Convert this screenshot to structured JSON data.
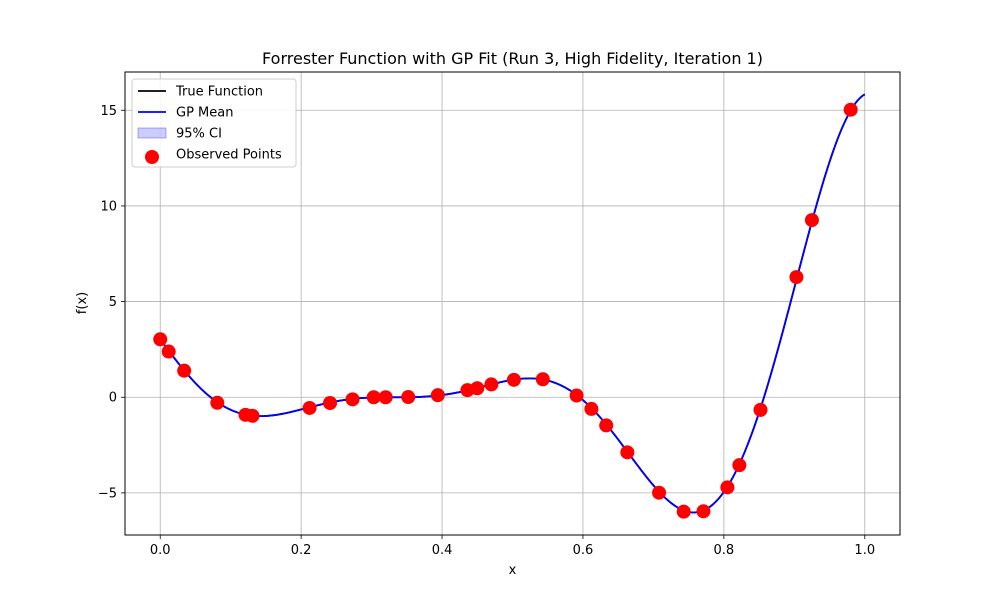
{
  "chart_data": {
    "type": "line",
    "title": "Forrester Function with GP Fit (Run 3, High Fidelity, Iteration 1)",
    "xlabel": "x",
    "ylabel": "f(x)",
    "xlim": [
      -0.05,
      1.05
    ],
    "ylim": [
      -7.2,
      17.0
    ],
    "grid": true,
    "legend_position": "top-left",
    "xticks": [
      0.0,
      0.2,
      0.4,
      0.6,
      0.8,
      1.0
    ],
    "xtick_labels": [
      "0.0",
      "0.2",
      "0.4",
      "0.6",
      "0.8",
      "1.0"
    ],
    "yticks": [
      -5,
      0,
      5,
      10,
      15
    ],
    "ytick_labels": [
      "−5",
      "0",
      "5",
      "10",
      "15"
    ],
    "curve_function": "(6x-2)^2 sin(12x-4)",
    "series": [
      {
        "name": "True Function",
        "kind": "line",
        "color": "#000000"
      },
      {
        "name": "GP Mean",
        "kind": "line",
        "color": "#0000ff"
      },
      {
        "name": "95% CI",
        "kind": "band",
        "color": "#0000ff"
      },
      {
        "name": "Observed Points",
        "kind": "scatter",
        "color": "#ff0000",
        "x": [
          0.0,
          0.012,
          0.034,
          0.081,
          0.121,
          0.131,
          0.212,
          0.241,
          0.273,
          0.303,
          0.32,
          0.352,
          0.394,
          0.436,
          0.45,
          0.47,
          0.502,
          0.543,
          0.591,
          0.612,
          0.633,
          0.663,
          0.708,
          0.743,
          0.771,
          0.805,
          0.822,
          0.852,
          0.903,
          0.925,
          0.98
        ],
        "y": [
          3.03,
          2.39,
          1.39,
          -0.29,
          -0.92,
          -0.97,
          -0.56,
          -0.3,
          -0.11,
          0.0,
          0.0,
          0.01,
          0.11,
          0.37,
          0.47,
          0.67,
          0.91,
          0.94,
          0.09,
          -0.61,
          -1.47,
          -2.88,
          -4.99,
          -5.98,
          -5.96,
          -4.71,
          -3.55,
          -0.66,
          6.28,
          9.26,
          15.03
        ]
      }
    ]
  }
}
